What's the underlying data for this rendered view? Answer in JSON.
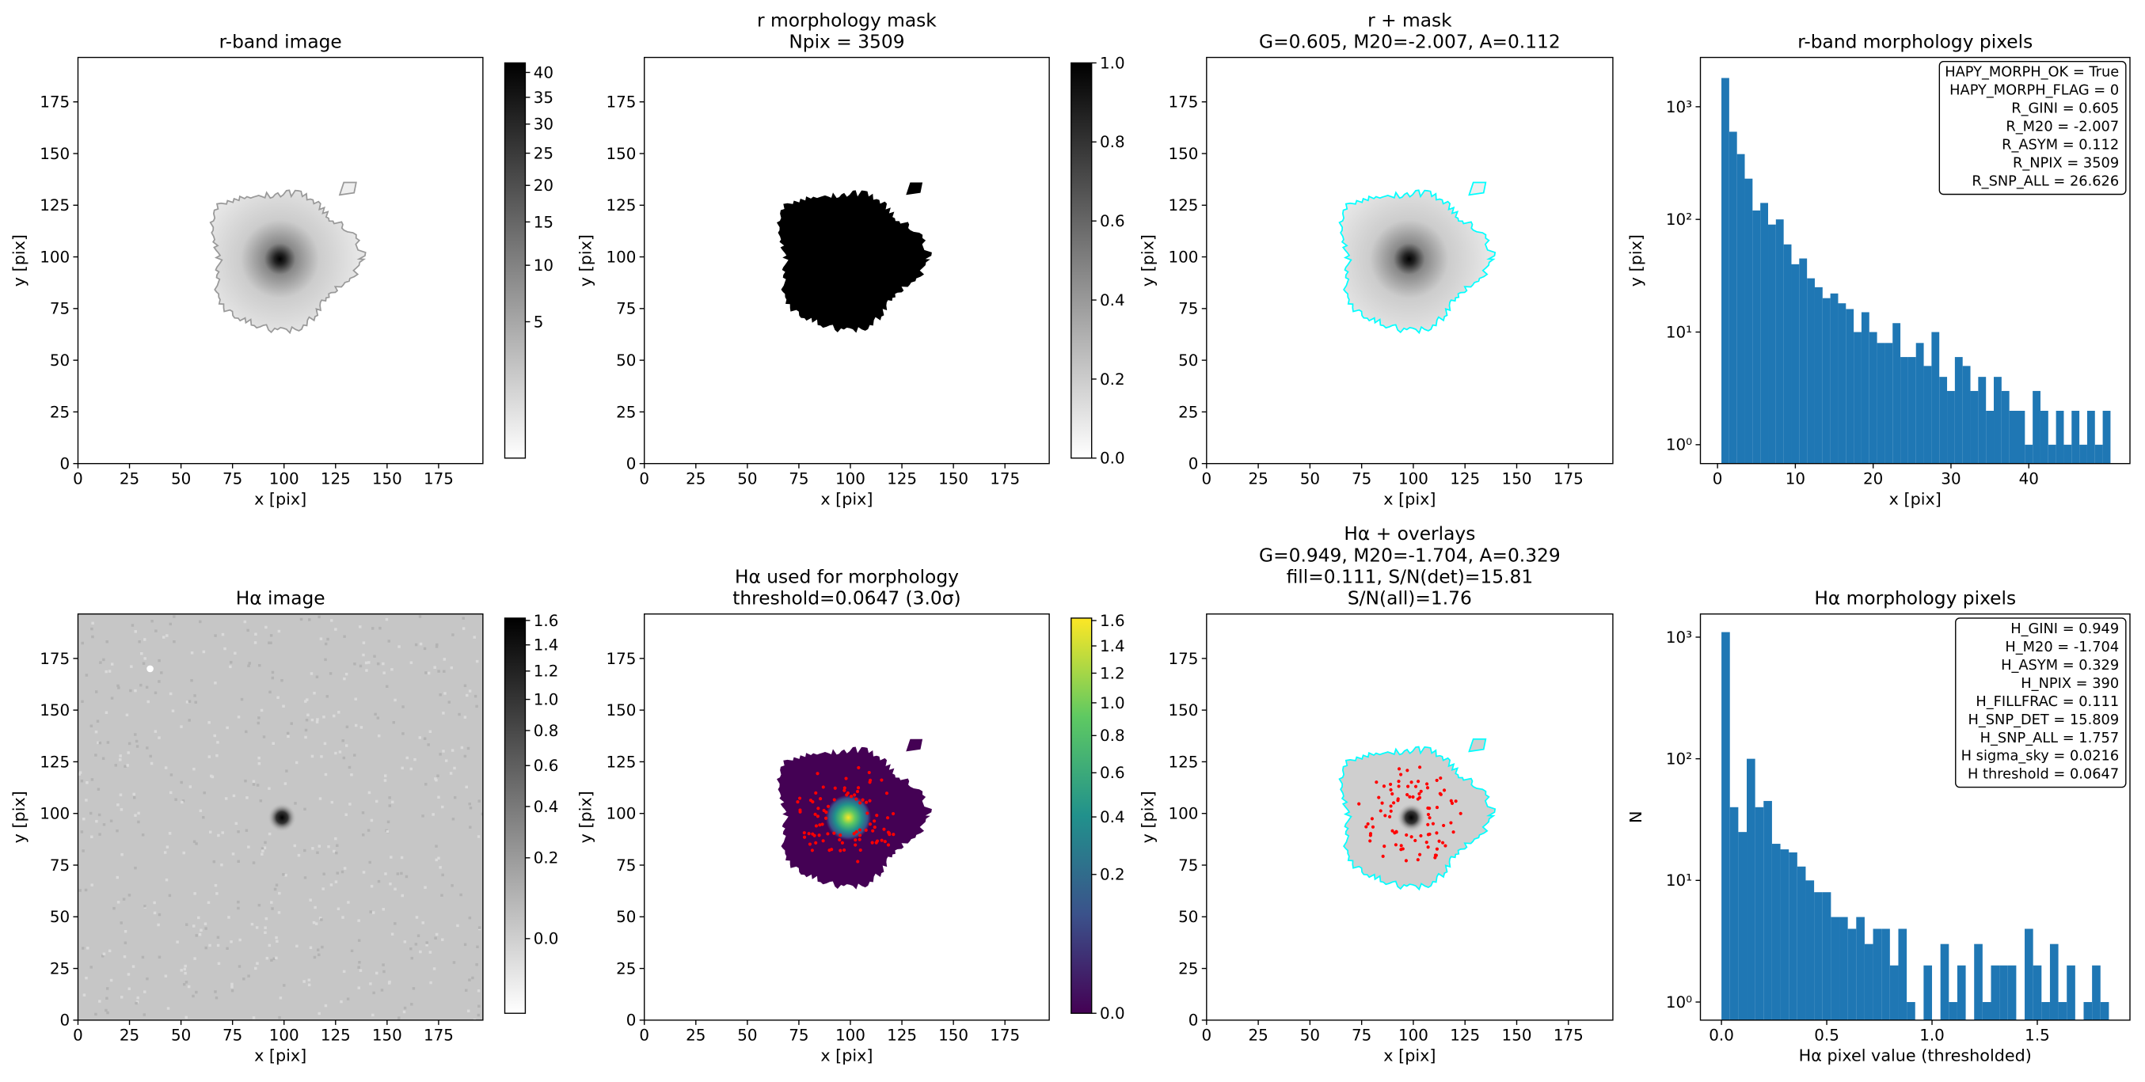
{
  "chart_data": [
    {
      "type": "image",
      "title": [
        "r-band image"
      ],
      "xlabel": "x [pix]",
      "ylabel": "y [pix]",
      "xlim": [
        0,
        196.5
      ],
      "ylim": [
        0,
        196.5
      ],
      "xticks": [
        0,
        25,
        50,
        75,
        100,
        125,
        150,
        175
      ],
      "yticks": [
        0,
        25,
        50,
        75,
        100,
        125,
        150,
        175
      ],
      "colorbar": {
        "cmap": "gray_r",
        "scale": "sqrt",
        "lim": [
          0,
          42
        ],
        "ticks": [
          5,
          10,
          15,
          20,
          25,
          30,
          35,
          40
        ]
      }
    },
    {
      "type": "image",
      "title": [
        "r morphology mask",
        "Npix = 3509"
      ],
      "xlabel": "x [pix]",
      "ylabel": "y [pix]",
      "xlim": [
        0,
        196.5
      ],
      "ylim": [
        0,
        196.5
      ],
      "xticks": [
        0,
        25,
        50,
        75,
        100,
        125,
        150,
        175
      ],
      "yticks": [
        0,
        25,
        50,
        75,
        100,
        125,
        150,
        175
      ],
      "colorbar": {
        "cmap": "gray_r",
        "scale": "linear",
        "lim": [
          0,
          1
        ],
        "ticks": [
          {
            "value": 0,
            "label": "0.0"
          },
          0.2,
          0.4,
          0.6,
          0.8,
          {
            "value": 1,
            "label": "1.0"
          }
        ]
      }
    },
    {
      "type": "image",
      "title": [
        "r + mask",
        "G=0.605, M20=-2.007, A=0.112"
      ],
      "xlabel": "x [pix]",
      "ylabel": "y [pix]",
      "xlim": [
        0,
        196.5
      ],
      "ylim": [
        0,
        196.5
      ],
      "xticks": [
        0,
        25,
        50,
        75,
        100,
        125,
        150,
        175
      ],
      "yticks": [
        0,
        25,
        50,
        75,
        100,
        125,
        150,
        175
      ]
    },
    {
      "type": "histogram",
      "title": [
        "r-band morphology pixels"
      ],
      "xlabel": "x [pix]",
      "ylabel": "y [pix]",
      "color": "#1f77b4",
      "log_y": true,
      "bins": [
        0.5,
        1.5,
        2.5,
        3.5,
        4.5,
        5.5,
        6.5,
        7.5,
        8.5,
        9.5,
        10.5,
        11.5,
        12.5,
        13.5,
        14.5,
        15.5,
        16.5,
        17.5,
        18.5,
        19.5,
        20.5,
        21.5,
        22.5,
        23.5,
        24.5,
        25.5,
        26.5,
        27.5,
        28.5,
        29.5,
        30.5,
        31.5,
        32.5,
        33.5,
        34.5,
        35.5,
        36.5,
        37.5,
        38.5,
        39.5,
        40.5,
        41.5,
        42.5,
        43.5,
        44.5,
        45.5,
        46.5,
        47.5,
        48.5,
        49.5,
        50.5
      ],
      "counts": [
        1800,
        600,
        380,
        230,
        120,
        140,
        90,
        100,
        60,
        40,
        45,
        30,
        25,
        20,
        22,
        18,
        16,
        10,
        15,
        10,
        8,
        8,
        12,
        6,
        6,
        8,
        5,
        10,
        4,
        3,
        6,
        5,
        3,
        4,
        2,
        4,
        3,
        2,
        2,
        1,
        3,
        2,
        1,
        2,
        1,
        2,
        1,
        2,
        1,
        2
      ],
      "xlim": [
        -2.2,
        53
      ],
      "ylim": [
        0.68,
        2740
      ],
      "xticks": [
        0,
        10,
        20,
        30,
        40
      ],
      "yticks": [
        {
          "value": 1,
          "label": "10⁰"
        },
        {
          "value": 10,
          "label": "10¹"
        },
        {
          "value": 100,
          "label": "10²"
        },
        {
          "value": 1000,
          "label": "10³"
        }
      ],
      "annotation": [
        "HAPY_MORPH_OK = True",
        "HAPY_MORPH_FLAG = 0",
        "R_GINI = 0.605",
        "R_M20 = -2.007",
        "R_ASYM = 0.112",
        "R_NPIX = 3509",
        "R_SNP_ALL = 26.626"
      ]
    },
    {
      "type": "image",
      "title": [
        "Hα image"
      ],
      "xlabel": "x [pix]",
      "ylabel": "y [pix]",
      "xlim": [
        0,
        196.5
      ],
      "ylim": [
        0,
        196.5
      ],
      "xticks": [
        0,
        25,
        50,
        75,
        100,
        125,
        150,
        175
      ],
      "yticks": [
        0,
        25,
        50,
        75,
        100,
        125,
        150,
        175
      ],
      "colorbar": {
        "cmap": "gray_r",
        "scale": "sqrt",
        "lim": [
          -0.06,
          1.62
        ],
        "ticks": [
          {
            "value": 0,
            "label": "0.0"
          },
          0.2,
          0.4,
          0.6,
          0.8,
          {
            "value": 1,
            "label": "1.0"
          },
          1.2,
          1.4,
          1.6
        ]
      }
    },
    {
      "type": "image",
      "title": [
        "Hα used for morphology",
        "threshold=0.0647 (3.0σ)"
      ],
      "xlabel": "x [pix]",
      "ylabel": "y [pix]",
      "xlim": [
        0,
        196.5
      ],
      "ylim": [
        0,
        196.5
      ],
      "xticks": [
        0,
        25,
        50,
        75,
        100,
        125,
        150,
        175
      ],
      "yticks": [
        0,
        25,
        50,
        75,
        100,
        125,
        150,
        175
      ],
      "colorbar": {
        "cmap": "viridis",
        "scale": "sqrt",
        "lim": [
          0,
          1.62
        ],
        "ticks": [
          {
            "value": 0,
            "label": "0.0"
          },
          0.2,
          0.4,
          0.6,
          0.8,
          {
            "value": 1,
            "label": "1.0"
          },
          1.2,
          1.4,
          1.6
        ]
      }
    },
    {
      "type": "image",
      "title": [
        "Hα + overlays",
        "G=0.949, M20=-1.704, A=0.329",
        "fill=0.111, S/N(det)=15.81",
        "S/N(all)=1.76"
      ],
      "xlabel": "x [pix]",
      "ylabel": "y [pix]",
      "xlim": [
        0,
        196.5
      ],
      "ylim": [
        0,
        196.5
      ],
      "xticks": [
        0,
        25,
        50,
        75,
        100,
        125,
        150,
        175
      ],
      "yticks": [
        0,
        25,
        50,
        75,
        100,
        125,
        150,
        175
      ]
    },
    {
      "type": "histogram",
      "title": [
        "Hα morphology pixels"
      ],
      "xlabel": "Hα pixel value (thresholded)",
      "ylabel": "N",
      "color": "#1f77b4",
      "log_y": true,
      "bins": [
        0,
        0.04,
        0.08,
        0.12,
        0.16,
        0.2,
        0.24,
        0.28,
        0.32,
        0.36,
        0.4,
        0.44,
        0.48,
        0.52,
        0.56,
        0.6,
        0.64,
        0.68,
        0.72,
        0.76,
        0.8,
        0.84,
        0.88,
        0.92,
        0.96,
        1,
        1.04,
        1.08,
        1.12,
        1.16,
        1.2,
        1.24,
        1.28,
        1.32,
        1.36,
        1.4,
        1.44,
        1.48,
        1.52,
        1.56,
        1.6,
        1.64,
        1.68,
        1.72,
        1.76,
        1.8,
        1.84
      ],
      "counts": [
        1100,
        40,
        25,
        100,
        40,
        45,
        20,
        18,
        17,
        13,
        10,
        8,
        8,
        5,
        5,
        4,
        5,
        3,
        4,
        4,
        2,
        4,
        1,
        0,
        2,
        0,
        3,
        1,
        2,
        0,
        3,
        1,
        2,
        2,
        2,
        0,
        4,
        2,
        1,
        3,
        1,
        2,
        0,
        1,
        2,
        1
      ],
      "xlim": [
        -0.1,
        1.94
      ],
      "ylim": [
        0.71,
        1550
      ],
      "xticks": [
        {
          "value": 0,
          "label": "0.0"
        },
        0.5,
        {
          "value": 1,
          "label": "1.0"
        },
        1.5
      ],
      "yticks": [
        {
          "value": 1,
          "label": "10⁰"
        },
        {
          "value": 10,
          "label": "10¹"
        },
        {
          "value": 100,
          "label": "10²"
        },
        {
          "value": 1000,
          "label": "10³"
        }
      ],
      "annotation": [
        "H_GINI = 0.949",
        "H_M20 = -1.704",
        "H_ASYM = 0.329",
        "H_NPIX = 390",
        "H_FILLFRAC = 0.111",
        "H_SNP_DET = 15.809",
        "H_SNP_ALL = 1.757",
        "H sigma_sky = 0.0216",
        "H threshold = 0.0647"
      ]
    }
  ]
}
